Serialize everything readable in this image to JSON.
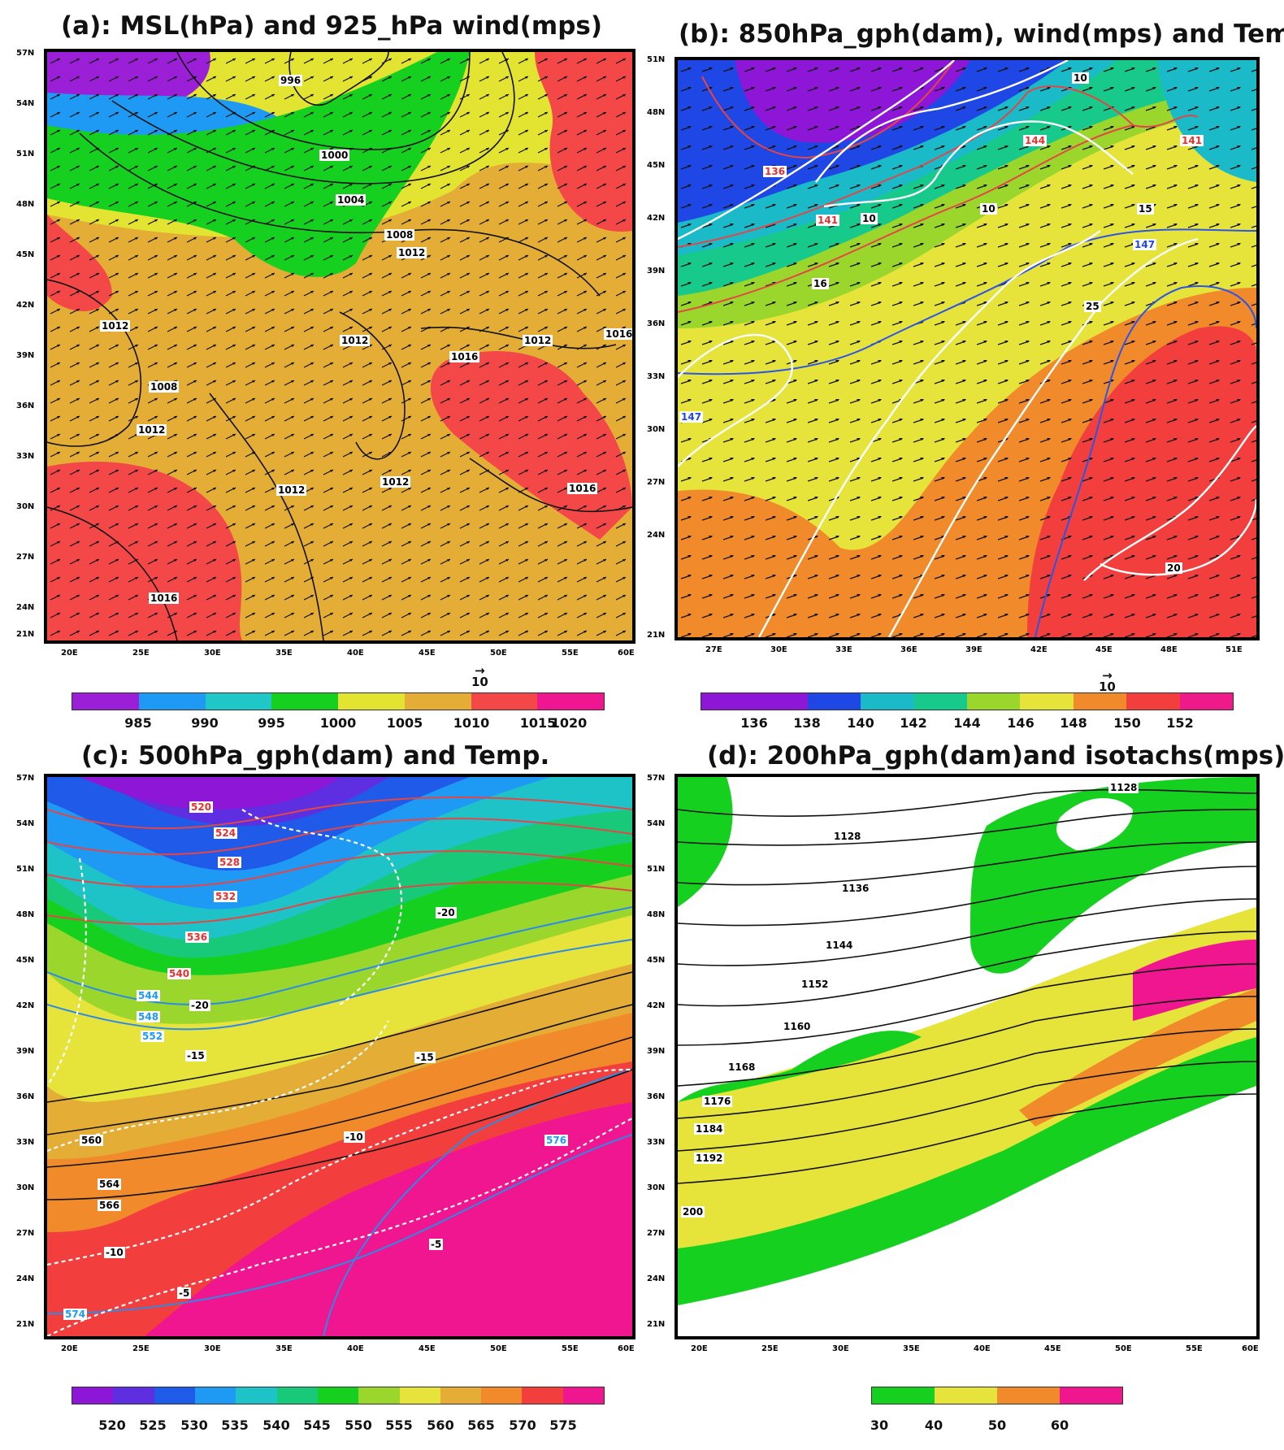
{
  "panels": [
    {
      "id": "a",
      "title": "(a): MSL(hPa) and 925_hPa wind(mps)",
      "x_ticks": [
        "20E",
        "25E",
        "30E",
        "35E",
        "40E",
        "45E",
        "50E",
        "55E",
        "60E"
      ],
      "y_ticks": [
        "57N",
        "54N",
        "51N",
        "48N",
        "45N",
        "42N",
        "39N",
        "36N",
        "33N",
        "30N",
        "27N",
        "24N",
        "21N"
      ],
      "fill_colors": [
        "#9b1fd6",
        "#1e9af5",
        "#20c7c7",
        "#16d020",
        "#e3e332",
        "#e4ad36",
        "#f44747",
        "#ef168f"
      ],
      "contour_labels": [
        "996",
        "1000",
        "1004",
        "1008",
        "1012",
        "1012",
        "1016",
        "1016",
        "1012",
        "1008",
        "1012",
        "1012",
        "1016",
        "1012",
        "1012",
        "1016"
      ],
      "colorbar_labels": [
        "985",
        "990",
        "995",
        "1000",
        "1005",
        "1010",
        "1015",
        "1020"
      ],
      "wind_reference": "10"
    },
    {
      "id": "b",
      "title": "(b): 850hPa_gph(dam), wind(mps) and Temp.",
      "x_ticks": [
        "27E",
        "30E",
        "33E",
        "36E",
        "39E",
        "42E",
        "45E",
        "48E",
        "51E"
      ],
      "y_ticks": [
        "51N",
        "48N",
        "45N",
        "42N",
        "39N",
        "36N",
        "33N",
        "30N",
        "27N",
        "24N",
        "21N"
      ],
      "fill_colors": [
        "#8e16d6",
        "#1f47e6",
        "#1bbac9",
        "#17c98a",
        "#9ad62b",
        "#e6e33a",
        "#f08a2a",
        "#f33e3e",
        "#ef1a8a"
      ],
      "contour_labels_red": [
        "136",
        "141",
        "144",
        "141"
      ],
      "contour_labels_blue": [
        "147",
        "147"
      ],
      "contour_labels_white": [
        "10",
        "10",
        "10",
        "15",
        "16",
        "25",
        "20"
      ],
      "colorbar_labels": [
        "136",
        "138",
        "140",
        "142",
        "144",
        "146",
        "148",
        "150",
        "152"
      ],
      "wind_reference": "10"
    },
    {
      "id": "c",
      "title": "(c): 500hPa_gph(dam) and Temp.",
      "x_ticks": [
        "20E",
        "25E",
        "30E",
        "35E",
        "40E",
        "45E",
        "50E",
        "55E",
        "60E"
      ],
      "y_ticks": [
        "57N",
        "54N",
        "51N",
        "48N",
        "45N",
        "42N",
        "39N",
        "36N",
        "33N",
        "30N",
        "27N",
        "24N",
        "21N"
      ],
      "fill_colors": [
        "#8e16d6",
        "#5d2fe0",
        "#1f5ae8",
        "#1e9af5",
        "#1ec3c8",
        "#18c97a",
        "#16d020",
        "#9ad62b",
        "#e6e33a",
        "#e4ad36",
        "#f08a2a",
        "#f33e3e",
        "#ef168f"
      ],
      "contour_labels_red": [
        "520",
        "524",
        "528",
        "532",
        "536",
        "540"
      ],
      "contour_labels_blue": [
        "544",
        "548",
        "552",
        "576",
        "574"
      ],
      "contour_labels_black": [
        "560",
        "564",
        "566"
      ],
      "contour_labels_white": [
        "-20",
        "-20",
        "-15",
        "-15",
        "-10",
        "-10",
        "-5",
        "-5"
      ],
      "colorbar_labels": [
        "520",
        "525",
        "530",
        "535",
        "540",
        "545",
        "550",
        "555",
        "560",
        "565",
        "570",
        "575"
      ]
    },
    {
      "id": "d",
      "title": "(d): 200hPa_gph(dam)and isotachs(mps)",
      "x_ticks": [
        "20E",
        "25E",
        "30E",
        "35E",
        "40E",
        "45E",
        "50E",
        "55E",
        "60E"
      ],
      "y_ticks": [
        "57N",
        "54N",
        "51N",
        "48N",
        "45N",
        "42N",
        "39N",
        "36N",
        "33N",
        "30N",
        "27N",
        "24N",
        "21N"
      ],
      "fill_colors": [
        "#16d020",
        "#e6e33a",
        "#f08a2a",
        "#ef168f"
      ],
      "contour_labels": [
        "1128",
        "1128",
        "1136",
        "1144",
        "1152",
        "1160",
        "1168",
        "1176",
        "1184",
        "1192",
        "200"
      ],
      "colorbar_labels": [
        "30",
        "40",
        "50",
        "60"
      ]
    }
  ]
}
